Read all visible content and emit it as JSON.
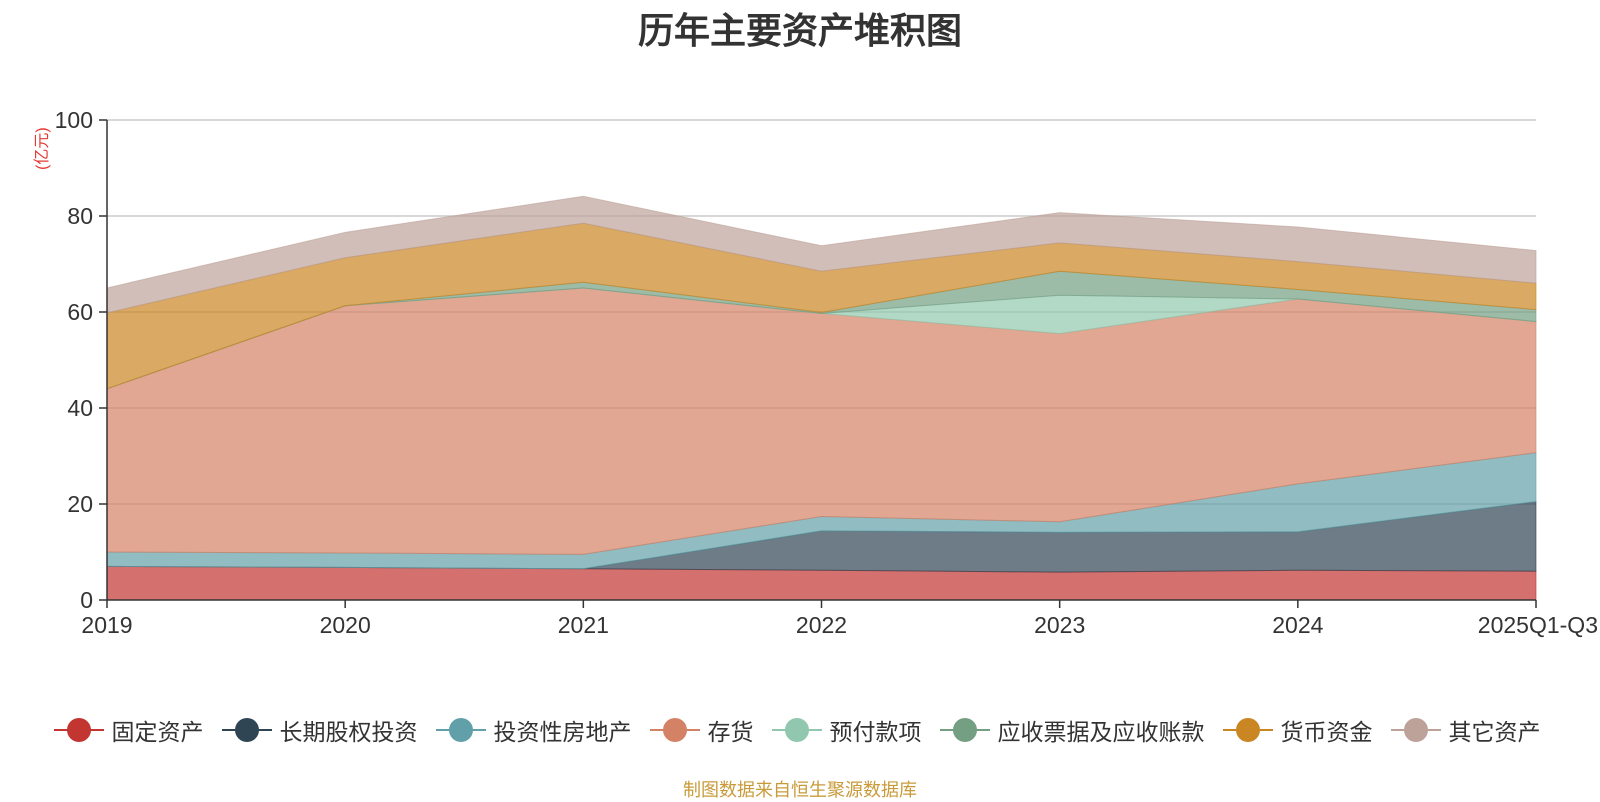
{
  "chart_data": {
    "type": "area",
    "stacked": true,
    "title": "历年主要资产堆积图",
    "ylabel": "(亿元)",
    "xlabel": "",
    "categories": [
      "2019",
      "2020",
      "2021",
      "2022",
      "2023",
      "2024",
      "2025Q1-Q3"
    ],
    "ylim": [
      0,
      100
    ],
    "yticks": [
      0,
      20,
      40,
      60,
      80,
      100
    ],
    "grid": true,
    "legend_position": "bottom",
    "series": [
      {
        "name": "固定资产",
        "color": "#c23531",
        "values": [
          7.0,
          6.8,
          6.5,
          6.2,
          5.8,
          6.2,
          6.0
        ]
      },
      {
        "name": "长期股权投资",
        "color": "#2f4554",
        "values": [
          0.0,
          0.0,
          0.0,
          8.2,
          8.3,
          8.0,
          14.5
        ]
      },
      {
        "name": "投资性房地产",
        "color": "#61a0a8",
        "values": [
          3.0,
          3.0,
          3.0,
          3.0,
          2.2,
          10.0,
          10.2
        ]
      },
      {
        "name": "存货",
        "color": "#d48265",
        "values": [
          34.0,
          51.5,
          55.5,
          42.3,
          39.2,
          38.5,
          27.3
        ]
      },
      {
        "name": "预付款项",
        "color": "#91c7ae",
        "values": [
          0.0,
          0.0,
          0.0,
          0.0,
          8.0,
          0.0,
          0.0
        ]
      },
      {
        "name": "应收票据及应收账款",
        "color": "#749f83",
        "values": [
          0.0,
          0.0,
          1.2,
          0.2,
          5.0,
          2.0,
          2.5
        ]
      },
      {
        "name": "货币资金",
        "color": "#ca8622",
        "values": [
          15.8,
          10.0,
          12.3,
          8.6,
          5.9,
          5.8,
          5.5
        ]
      },
      {
        "name": "其它资产",
        "color": "#bda29a",
        "values": [
          5.2,
          5.3,
          5.6,
          5.3,
          6.3,
          7.2,
          6.8
        ]
      }
    ]
  },
  "source_note": "制图数据来自恒生聚源数据库"
}
